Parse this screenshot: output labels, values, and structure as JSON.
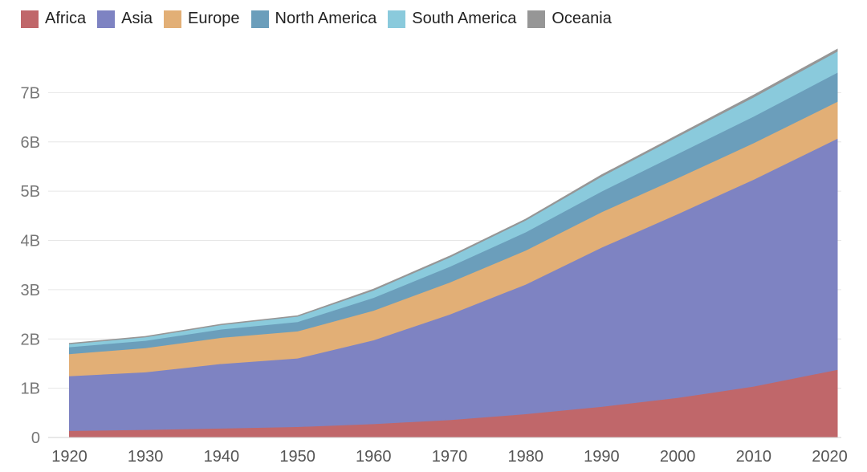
{
  "chart_data": {
    "type": "area",
    "stacked": true,
    "legend_position": "top-left",
    "grid": true,
    "x": [
      1920,
      1930,
      1940,
      1950,
      1960,
      1970,
      1980,
      1990,
      2000,
      2010,
      2021
    ],
    "xticks": [
      1920,
      1930,
      1940,
      1950,
      1960,
      1970,
      1980,
      1990,
      2000,
      2010,
      2020
    ],
    "xlim": [
      1919,
      2021
    ],
    "yticks": [
      0,
      1,
      2,
      3,
      4,
      5,
      6,
      7
    ],
    "ytick_labels": [
      "0",
      "1B",
      "2B",
      "3B",
      "4B",
      "5B",
      "6B",
      "7B"
    ],
    "ylim": [
      0,
      8.0
    ],
    "series": [
      {
        "name": "Africa",
        "color": "#c0676a",
        "values": [
          0.14,
          0.16,
          0.19,
          0.22,
          0.28,
          0.36,
          0.48,
          0.63,
          0.81,
          1.04,
          1.38
        ]
      },
      {
        "name": "Asia",
        "color": "#7e83c2",
        "values": [
          1.11,
          1.17,
          1.31,
          1.39,
          1.7,
          2.14,
          2.63,
          3.23,
          3.73,
          4.2,
          4.69
        ]
      },
      {
        "name": "Europe",
        "color": "#e2af76",
        "values": [
          0.45,
          0.49,
          0.53,
          0.55,
          0.6,
          0.65,
          0.69,
          0.72,
          0.73,
          0.74,
          0.75
        ]
      },
      {
        "name": "North America",
        "color": "#6b9ebb",
        "values": [
          0.14,
          0.15,
          0.17,
          0.19,
          0.26,
          0.32,
          0.37,
          0.42,
          0.49,
          0.54,
          0.59
        ]
      },
      {
        "name": "South America",
        "color": "#8acadc",
        "values": [
          0.06,
          0.07,
          0.09,
          0.11,
          0.15,
          0.19,
          0.24,
          0.3,
          0.35,
          0.39,
          0.43
        ]
      },
      {
        "name": "Oceania",
        "color": "#969696",
        "values": [
          0.01,
          0.01,
          0.01,
          0.01,
          0.02,
          0.02,
          0.02,
          0.03,
          0.03,
          0.04,
          0.04
        ]
      }
    ]
  }
}
